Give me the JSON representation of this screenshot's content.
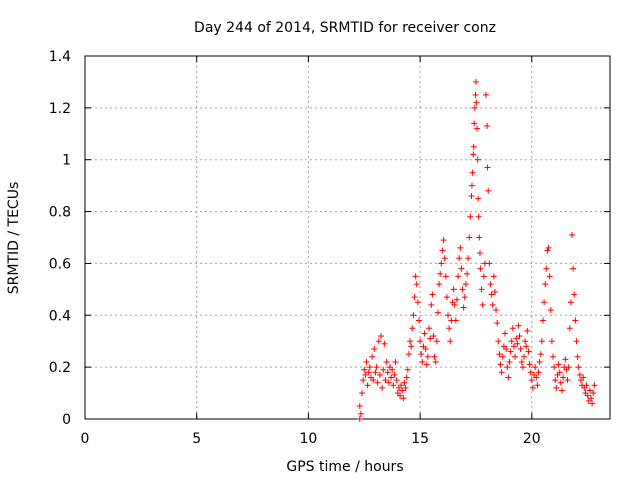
{
  "chart_data": {
    "type": "scatter",
    "title": "Day 244 of 2014, SRMTID for receiver conz",
    "xlabel": "GPS time / hours",
    "ylabel": "SRMTID / TECUs",
    "xlim": [
      0,
      23.5
    ],
    "ylim": [
      0,
      1.4
    ],
    "x_ticks": [
      0,
      5,
      10,
      15,
      20
    ],
    "x_tick_labels": [
      "0",
      "5",
      "10",
      "15",
      "20"
    ],
    "y_ticks": [
      0,
      0.2,
      0.4,
      0.6,
      0.8,
      1.0,
      1.2,
      1.4
    ],
    "y_tick_labels": [
      "0",
      "0.2",
      "0.4",
      "0.6",
      "0.8",
      "1",
      "1.2",
      "1.4"
    ],
    "grid": true,
    "marker": "plus",
    "color": "#ff0000",
    "series": [
      {
        "name": "SRMTID",
        "points": [
          [
            12.3,
            0.0
          ],
          [
            12.3,
            0.05
          ],
          [
            12.35,
            0.02
          ],
          [
            12.4,
            0.1
          ],
          [
            12.45,
            0.15
          ],
          [
            12.5,
            0.19
          ],
          [
            12.55,
            0.17
          ],
          [
            12.6,
            0.22
          ],
          [
            12.65,
            0.13
          ],
          [
            12.7,
            0.18
          ],
          [
            12.75,
            0.2
          ],
          [
            12.8,
            0.16
          ],
          [
            12.85,
            0.24
          ],
          [
            12.9,
            0.15
          ],
          [
            12.95,
            0.27
          ],
          [
            13.0,
            0.18
          ],
          [
            13.05,
            0.2
          ],
          [
            13.1,
            0.14
          ],
          [
            13.15,
            0.3
          ],
          [
            13.2,
            0.17
          ],
          [
            13.25,
            0.32
          ],
          [
            13.3,
            0.12
          ],
          [
            13.35,
            0.19
          ],
          [
            13.4,
            0.29
          ],
          [
            13.45,
            0.15
          ],
          [
            13.5,
            0.22
          ],
          [
            13.55,
            0.18
          ],
          [
            13.6,
            0.14
          ],
          [
            13.65,
            0.2
          ],
          [
            13.7,
            0.16
          ],
          [
            13.75,
            0.19
          ],
          [
            13.8,
            0.13
          ],
          [
            13.85,
            0.17
          ],
          [
            13.9,
            0.22
          ],
          [
            13.95,
            0.15
          ],
          [
            14.0,
            0.1
          ],
          [
            14.05,
            0.12
          ],
          [
            14.1,
            0.09
          ],
          [
            14.15,
            0.13
          ],
          [
            14.2,
            0.11
          ],
          [
            14.25,
            0.08
          ],
          [
            14.3,
            0.14
          ],
          [
            14.35,
            0.12
          ],
          [
            14.4,
            0.16
          ],
          [
            14.45,
            0.19
          ],
          [
            14.5,
            0.25
          ],
          [
            14.55,
            0.3
          ],
          [
            14.6,
            0.28
          ],
          [
            14.65,
            0.35
          ],
          [
            14.7,
            0.4
          ],
          [
            14.75,
            0.47
          ],
          [
            14.8,
            0.55
          ],
          [
            14.85,
            0.52
          ],
          [
            14.9,
            0.45
          ],
          [
            14.95,
            0.38
          ],
          [
            15.0,
            0.3
          ],
          [
            15.05,
            0.25
          ],
          [
            15.1,
            0.22
          ],
          [
            15.15,
            0.28
          ],
          [
            15.2,
            0.33
          ],
          [
            15.25,
            0.27
          ],
          [
            15.3,
            0.21
          ],
          [
            15.35,
            0.24
          ],
          [
            15.4,
            0.35
          ],
          [
            15.45,
            0.31
          ],
          [
            15.5,
            0.44
          ],
          [
            15.55,
            0.48
          ],
          [
            15.6,
            0.32
          ],
          [
            15.65,
            0.24
          ],
          [
            15.7,
            0.22
          ],
          [
            15.75,
            0.3
          ],
          [
            15.8,
            0.41
          ],
          [
            15.85,
            0.52
          ],
          [
            15.9,
            0.56
          ],
          [
            15.95,
            0.6
          ],
          [
            16.0,
            0.65
          ],
          [
            16.05,
            0.69
          ],
          [
            16.1,
            0.62
          ],
          [
            16.15,
            0.55
          ],
          [
            16.2,
            0.47
          ],
          [
            16.25,
            0.4
          ],
          [
            16.3,
            0.35
          ],
          [
            16.35,
            0.3
          ],
          [
            16.4,
            0.38
          ],
          [
            16.45,
            0.45
          ],
          [
            16.5,
            0.5
          ],
          [
            16.55,
            0.44
          ],
          [
            16.6,
            0.38
          ],
          [
            16.65,
            0.46
          ],
          [
            16.7,
            0.55
          ],
          [
            16.75,
            0.62
          ],
          [
            16.8,
            0.66
          ],
          [
            16.85,
            0.58
          ],
          [
            16.9,
            0.5
          ],
          [
            16.95,
            0.43
          ],
          [
            17.0,
            0.47
          ],
          [
            17.05,
            0.52
          ],
          [
            17.1,
            0.56
          ],
          [
            17.15,
            0.62
          ],
          [
            17.2,
            0.7
          ],
          [
            17.25,
            0.78
          ],
          [
            17.3,
            0.86
          ],
          [
            17.32,
            0.9
          ],
          [
            17.35,
            0.95
          ],
          [
            17.38,
            1.02
          ],
          [
            17.4,
            1.05
          ],
          [
            17.42,
            1.14
          ],
          [
            17.45,
            1.2
          ],
          [
            17.48,
            1.25
          ],
          [
            17.5,
            1.3
          ],
          [
            17.52,
            1.22
          ],
          [
            17.55,
            1.12
          ],
          [
            17.58,
            1.0
          ],
          [
            17.6,
            0.85
          ],
          [
            17.62,
            0.78
          ],
          [
            17.65,
            0.7
          ],
          [
            17.68,
            0.64
          ],
          [
            17.7,
            0.58
          ],
          [
            17.75,
            0.5
          ],
          [
            17.8,
            0.44
          ],
          [
            17.85,
            0.55
          ],
          [
            17.9,
            0.6
          ],
          [
            17.95,
            1.25
          ],
          [
            18.0,
            1.13
          ],
          [
            18.02,
            0.97
          ],
          [
            18.05,
            0.88
          ],
          [
            18.1,
            0.6
          ],
          [
            18.15,
            0.52
          ],
          [
            18.2,
            0.48
          ],
          [
            18.25,
            0.44
          ],
          [
            18.3,
            0.55
          ],
          [
            18.35,
            0.49
          ],
          [
            18.4,
            0.42
          ],
          [
            18.45,
            0.37
          ],
          [
            18.5,
            0.3
          ],
          [
            18.55,
            0.25
          ],
          [
            18.6,
            0.21
          ],
          [
            18.65,
            0.18
          ],
          [
            18.7,
            0.24
          ],
          [
            18.75,
            0.28
          ],
          [
            18.8,
            0.33
          ],
          [
            18.85,
            0.27
          ],
          [
            18.9,
            0.2
          ],
          [
            18.95,
            0.16
          ],
          [
            19.0,
            0.22
          ],
          [
            19.05,
            0.26
          ],
          [
            19.1,
            0.3
          ],
          [
            19.15,
            0.35
          ],
          [
            19.2,
            0.28
          ],
          [
            19.25,
            0.24
          ],
          [
            19.3,
            0.31
          ],
          [
            19.35,
            0.29
          ],
          [
            19.4,
            0.36
          ],
          [
            19.45,
            0.32
          ],
          [
            19.5,
            0.27
          ],
          [
            19.55,
            0.22
          ],
          [
            19.6,
            0.2
          ],
          [
            19.65,
            0.24
          ],
          [
            19.7,
            0.3
          ],
          [
            19.75,
            0.28
          ],
          [
            19.8,
            0.34
          ],
          [
            19.85,
            0.26
          ],
          [
            19.9,
            0.21
          ],
          [
            19.95,
            0.18
          ],
          [
            20.0,
            0.15
          ],
          [
            20.05,
            0.12
          ],
          [
            20.1,
            0.17
          ],
          [
            20.15,
            0.2
          ],
          [
            20.2,
            0.16
          ],
          [
            20.25,
            0.13
          ],
          [
            20.3,
            0.18
          ],
          [
            20.35,
            0.22
          ],
          [
            20.4,
            0.25
          ],
          [
            20.45,
            0.3
          ],
          [
            20.5,
            0.38
          ],
          [
            20.55,
            0.45
          ],
          [
            20.6,
            0.52
          ],
          [
            20.65,
            0.58
          ],
          [
            20.7,
            0.65
          ],
          [
            20.75,
            0.66
          ],
          [
            20.8,
            0.55
          ],
          [
            20.85,
            0.42
          ],
          [
            20.9,
            0.3
          ],
          [
            20.95,
            0.24
          ],
          [
            21.0,
            0.2
          ],
          [
            21.05,
            0.15
          ],
          [
            21.1,
            0.12
          ],
          [
            21.15,
            0.17
          ],
          [
            21.2,
            0.21
          ],
          [
            21.25,
            0.18
          ],
          [
            21.3,
            0.14
          ],
          [
            21.35,
            0.11
          ],
          [
            21.4,
            0.16
          ],
          [
            21.45,
            0.2
          ],
          [
            21.5,
            0.23
          ],
          [
            21.55,
            0.19
          ],
          [
            21.6,
            0.15
          ],
          [
            21.65,
            0.2
          ],
          [
            21.7,
            0.35
          ],
          [
            21.75,
            0.45
          ],
          [
            21.8,
            0.71
          ],
          [
            21.85,
            0.58
          ],
          [
            21.9,
            0.48
          ],
          [
            21.95,
            0.38
          ],
          [
            22.0,
            0.3
          ],
          [
            22.05,
            0.24
          ],
          [
            22.1,
            0.2
          ],
          [
            22.15,
            0.17
          ],
          [
            22.2,
            0.15
          ],
          [
            22.25,
            0.13
          ],
          [
            22.3,
            0.16
          ],
          [
            22.35,
            0.12
          ],
          [
            22.4,
            0.1
          ],
          [
            22.45,
            0.13
          ],
          [
            22.5,
            0.09
          ],
          [
            22.55,
            0.07
          ],
          [
            22.6,
            0.11
          ],
          [
            22.65,
            0.08
          ],
          [
            22.7,
            0.06
          ],
          [
            22.75,
            0.1
          ],
          [
            22.8,
            0.13
          ]
        ]
      }
    ]
  }
}
